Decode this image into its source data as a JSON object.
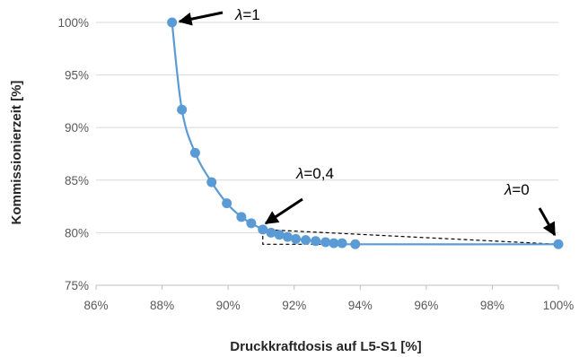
{
  "chart_data": {
    "type": "scatter",
    "title": "",
    "xlabel": "Druckkraftdosis auf L5-S1 [%]",
    "ylabel": "Kommissionierzeit [%]",
    "xlim": [
      86,
      100
    ],
    "ylim": [
      75,
      100
    ],
    "x_ticks": [
      "86%",
      "88%",
      "90%",
      "92%",
      "94%",
      "96%",
      "98%",
      "100%"
    ],
    "y_ticks": [
      "75%",
      "80%",
      "85%",
      "90%",
      "95%",
      "100%"
    ],
    "grid": "horizontal",
    "legend": "none",
    "series": [
      {
        "color": "#5b9bd5",
        "line": "smooth",
        "markers": true,
        "points": [
          {
            "x": 88.3,
            "y": 100.0
          },
          {
            "x": 88.6,
            "y": 91.7
          },
          {
            "x": 89.0,
            "y": 87.6
          },
          {
            "x": 89.5,
            "y": 84.8
          },
          {
            "x": 89.96,
            "y": 82.8
          },
          {
            "x": 90.4,
            "y": 81.5
          },
          {
            "x": 90.7,
            "y": 80.9
          },
          {
            "x": 91.05,
            "y": 80.3
          },
          {
            "x": 91.3,
            "y": 80.0
          },
          {
            "x": 91.55,
            "y": 79.8
          },
          {
            "x": 91.8,
            "y": 79.6
          },
          {
            "x": 92.05,
            "y": 79.4
          },
          {
            "x": 92.35,
            "y": 79.3
          },
          {
            "x": 92.65,
            "y": 79.2
          },
          {
            "x": 92.95,
            "y": 79.1
          },
          {
            "x": 93.2,
            "y": 79.0
          },
          {
            "x": 93.45,
            "y": 79.0
          },
          {
            "x": 93.85,
            "y": 78.9
          },
          {
            "x": 100.0,
            "y": 78.9
          }
        ]
      }
    ],
    "guides": [
      {
        "style": "dashed",
        "points": [
          {
            "x": 91.05,
            "y": 80.3
          },
          {
            "x": 100.0,
            "y": 78.9
          }
        ]
      },
      {
        "style": "dashed",
        "points": [
          {
            "x": 91.05,
            "y": 80.3
          },
          {
            "x": 91.05,
            "y": 78.9
          },
          {
            "x": 100.0,
            "y": 78.9
          }
        ]
      }
    ],
    "annotations": [
      {
        "label_symbol": "λ",
        "label_value": "=1",
        "target": {
          "x": 88.3,
          "y": 100.0
        }
      },
      {
        "label_symbol": "λ",
        "label_value": "=0,4",
        "target": {
          "x": 91.05,
          "y": 80.3
        }
      },
      {
        "label_symbol": "λ",
        "label_value": "=0",
        "target": {
          "x": 100.0,
          "y": 78.9
        }
      }
    ],
    "colors": {
      "series": "#5b9bd5",
      "grid": "#d9d9d9",
      "axis": "#bfbfbf",
      "annotation": "#000000"
    }
  }
}
